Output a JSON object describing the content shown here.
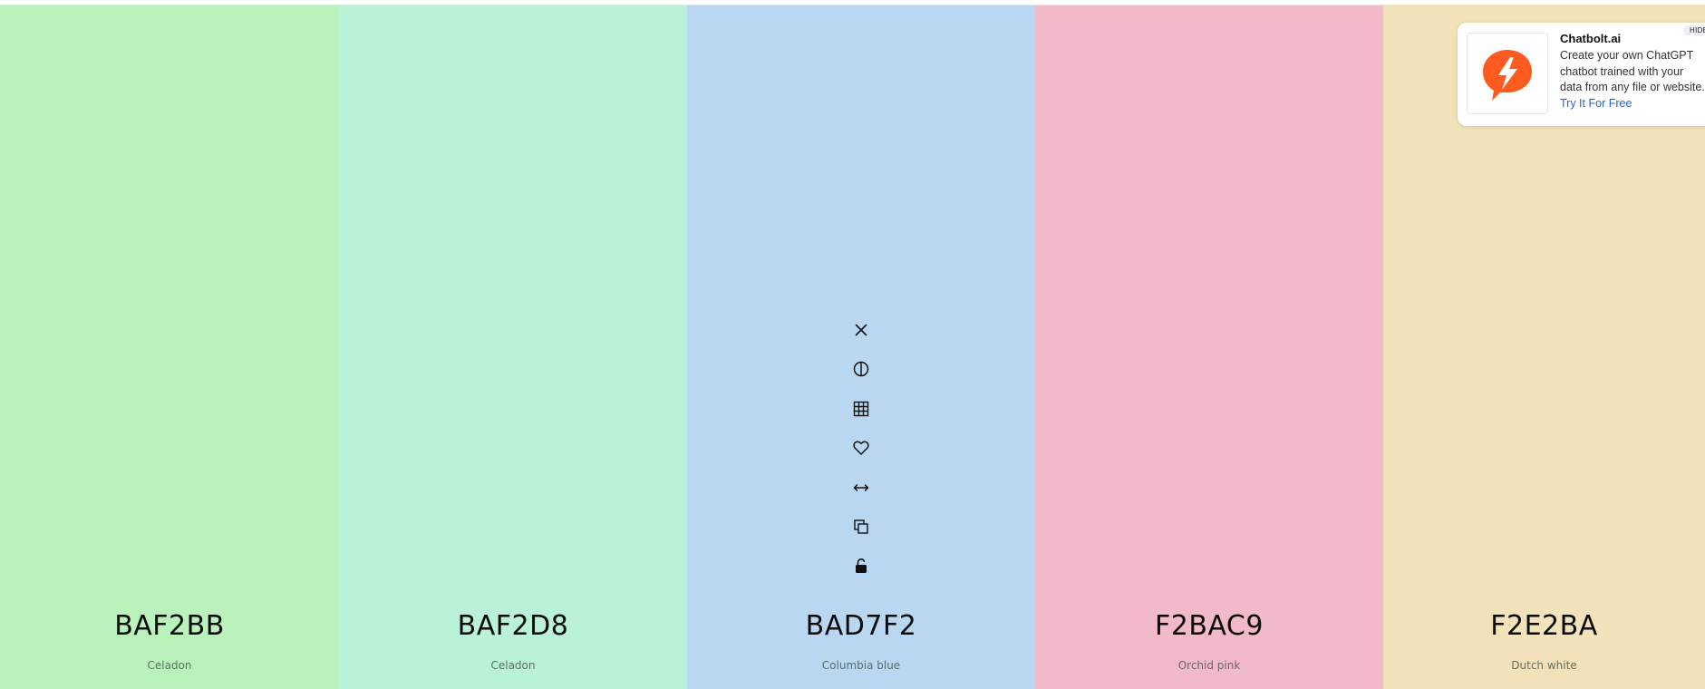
{
  "palette": {
    "swatches": [
      {
        "hex": "BAF2BB",
        "name": "Celadon",
        "color": "#BAF2BB",
        "width": 374
      },
      {
        "hex": "BAF2D8",
        "name": "Celadon",
        "color": "#BAF2D8",
        "width": 384
      },
      {
        "hex": "BAD7F2",
        "name": "Columbia blue",
        "color": "#BAD7F2",
        "width": 384
      },
      {
        "hex": "F2BAC9",
        "name": "Orchid pink",
        "color": "#F2BAC9",
        "width": 384
      },
      {
        "hex": "F2E2BA",
        "name": "Dutch white",
        "color": "#F2E2BA",
        "width": 355
      }
    ],
    "active_tools": [
      "close-icon",
      "contrast-icon",
      "shades-grid-icon",
      "heart-icon",
      "drag-horizontal-icon",
      "copy-icon",
      "lock-icon"
    ]
  },
  "ad": {
    "title": "Chatbolt.ai",
    "text": "Create your own ChatGPT chatbot trained with your data from any file or website.",
    "link": "Try It For Free",
    "hide_label": "HIDE",
    "logo_color": "#FF5A1F"
  }
}
